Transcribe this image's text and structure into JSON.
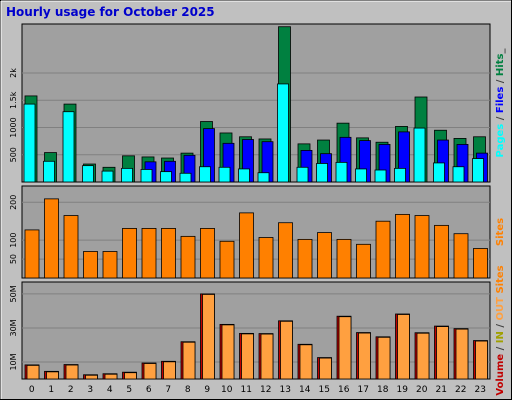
{
  "title": "Hourly usage for October 2025",
  "colors": {
    "frame_bg": "#C0C0C0",
    "plot_bg": "#A0A0A0",
    "gridline": "#808080",
    "title": "#0000CC",
    "hits": "#008040",
    "files": "#0000FF",
    "pages": "#00FFFF",
    "sites": "#FF8000",
    "kbytes": "#C00000",
    "kbytes_in": "#FF6000",
    "kbytes_out": "#FFC080"
  },
  "chart_data": [
    {
      "type": "bar",
      "panel": "hits-files-pages",
      "categories": [
        "0",
        "1",
        "2",
        "3",
        "4",
        "5",
        "6",
        "7",
        "8",
        "9",
        "10",
        "11",
        "12",
        "13",
        "14",
        "15",
        "16",
        "17",
        "18",
        "19",
        "20",
        "21",
        "22",
        "23"
      ],
      "ylim": [
        0,
        2900
      ],
      "y_ticks": [
        {
          "v": 500,
          "t": "500"
        },
        {
          "v": 1000,
          "t": "1000"
        },
        {
          "v": 1500,
          "t": "1.5k"
        },
        {
          "v": 2000,
          "t": "2k"
        }
      ],
      "right_label": [
        {
          "text": "Pages",
          "color": "#00FFFF"
        },
        {
          "text": " / ",
          "color": "#404040"
        },
        {
          "text": "Files",
          "color": "#0000FF"
        },
        {
          "text": " / ",
          "color": "#404040"
        },
        {
          "text": "Hits",
          "color": "#008040"
        },
        {
          "text": "_",
          "color": "#404040"
        }
      ],
      "series": [
        {
          "name": "Hits",
          "color": "#008040",
          "values": [
            1580,
            540,
            1430,
            330,
            270,
            480,
            460,
            440,
            530,
            1110,
            900,
            830,
            790,
            2850,
            700,
            770,
            1080,
            810,
            730,
            1020,
            1560,
            950,
            800,
            830
          ]
        },
        {
          "name": "Files",
          "color": "#0000FF",
          "values": [
            null,
            null,
            null,
            null,
            null,
            null,
            370,
            380,
            490,
            980,
            710,
            780,
            740,
            null,
            580,
            520,
            820,
            760,
            690,
            920,
            null,
            770,
            690,
            530
          ]
        },
        {
          "name": "Pages",
          "color": "#00FFFF",
          "values": [
            1430,
            380,
            1290,
            300,
            200,
            250,
            230,
            190,
            160,
            280,
            270,
            240,
            170,
            1800,
            270,
            340,
            360,
            240,
            220,
            250,
            990,
            350,
            280,
            430
          ]
        }
      ]
    },
    {
      "type": "bar",
      "panel": "sites",
      "categories": [
        "0",
        "1",
        "2",
        "3",
        "4",
        "5",
        "6",
        "7",
        "8",
        "9",
        "10",
        "11",
        "12",
        "13",
        "14",
        "15",
        "16",
        "17",
        "18",
        "19",
        "20",
        "21",
        "22",
        "23"
      ],
      "ylim": [
        0,
        243
      ],
      "y_ticks": [
        {
          "v": 50,
          "t": "50"
        },
        {
          "v": 100,
          "t": "100"
        },
        {
          "v": 200,
          "t": "200"
        }
      ],
      "right_label": [
        {
          "text": "Sites",
          "color": "#FF8000"
        }
      ],
      "series": [
        {
          "name": "Sites",
          "color": "#FF8000",
          "values": [
            127,
            209,
            165,
            70,
            70,
            131,
            131,
            131,
            110,
            131,
            97,
            172,
            107,
            146,
            102,
            120,
            102,
            89,
            150,
            168,
            165,
            139,
            117,
            78
          ]
        }
      ]
    },
    {
      "type": "bar",
      "panel": "volume",
      "categories": [
        "0",
        "1",
        "2",
        "3",
        "4",
        "5",
        "6",
        "7",
        "8",
        "9",
        "10",
        "11",
        "12",
        "13",
        "14",
        "15",
        "16",
        "17",
        "18",
        "19",
        "20",
        "21",
        "22",
        "23"
      ],
      "ylim": [
        0,
        57
      ],
      "y_ticks": [
        {
          "v": 10,
          "t": "10M"
        },
        {
          "v": 30,
          "t": "30M"
        },
        {
          "v": 50,
          "t": "50M"
        }
      ],
      "right_label": [
        {
          "text": "Volume",
          "color": "#C00000"
        },
        {
          "text": " / ",
          "color": "#404040"
        },
        {
          "text": "IN",
          "color": "#A0A000"
        },
        {
          "text": " / ",
          "color": "#404040"
        },
        {
          "text": "OUT",
          "color": "#FFA040"
        },
        {
          "text": " ",
          "color": "#404040"
        },
        {
          "text": "Sites",
          "color": "#FF8000"
        }
      ],
      "series": [
        {
          "name": "Volume",
          "color": "#C00000",
          "values": [
            8.3,
            4.5,
            8.5,
            2.5,
            3.1,
            4.0,
            9.4,
            10.4,
            21.9,
            50.0,
            32.1,
            26.8,
            26.7,
            34.2,
            20.4,
            12.6,
            36.9,
            27.3,
            24.8,
            38.2,
            27.2,
            31.1,
            29.6,
            22.6
          ]
        },
        {
          "name": "OUT",
          "color": "#FFA040",
          "values": [
            8.0,
            4.2,
            8.2,
            2.2,
            2.8,
            3.7,
            9.1,
            10.1,
            21.6,
            49.7,
            31.8,
            26.5,
            26.4,
            33.9,
            20.1,
            12.3,
            36.6,
            27.0,
            24.5,
            37.9,
            26.9,
            30.8,
            29.3,
            22.3
          ]
        }
      ]
    }
  ]
}
